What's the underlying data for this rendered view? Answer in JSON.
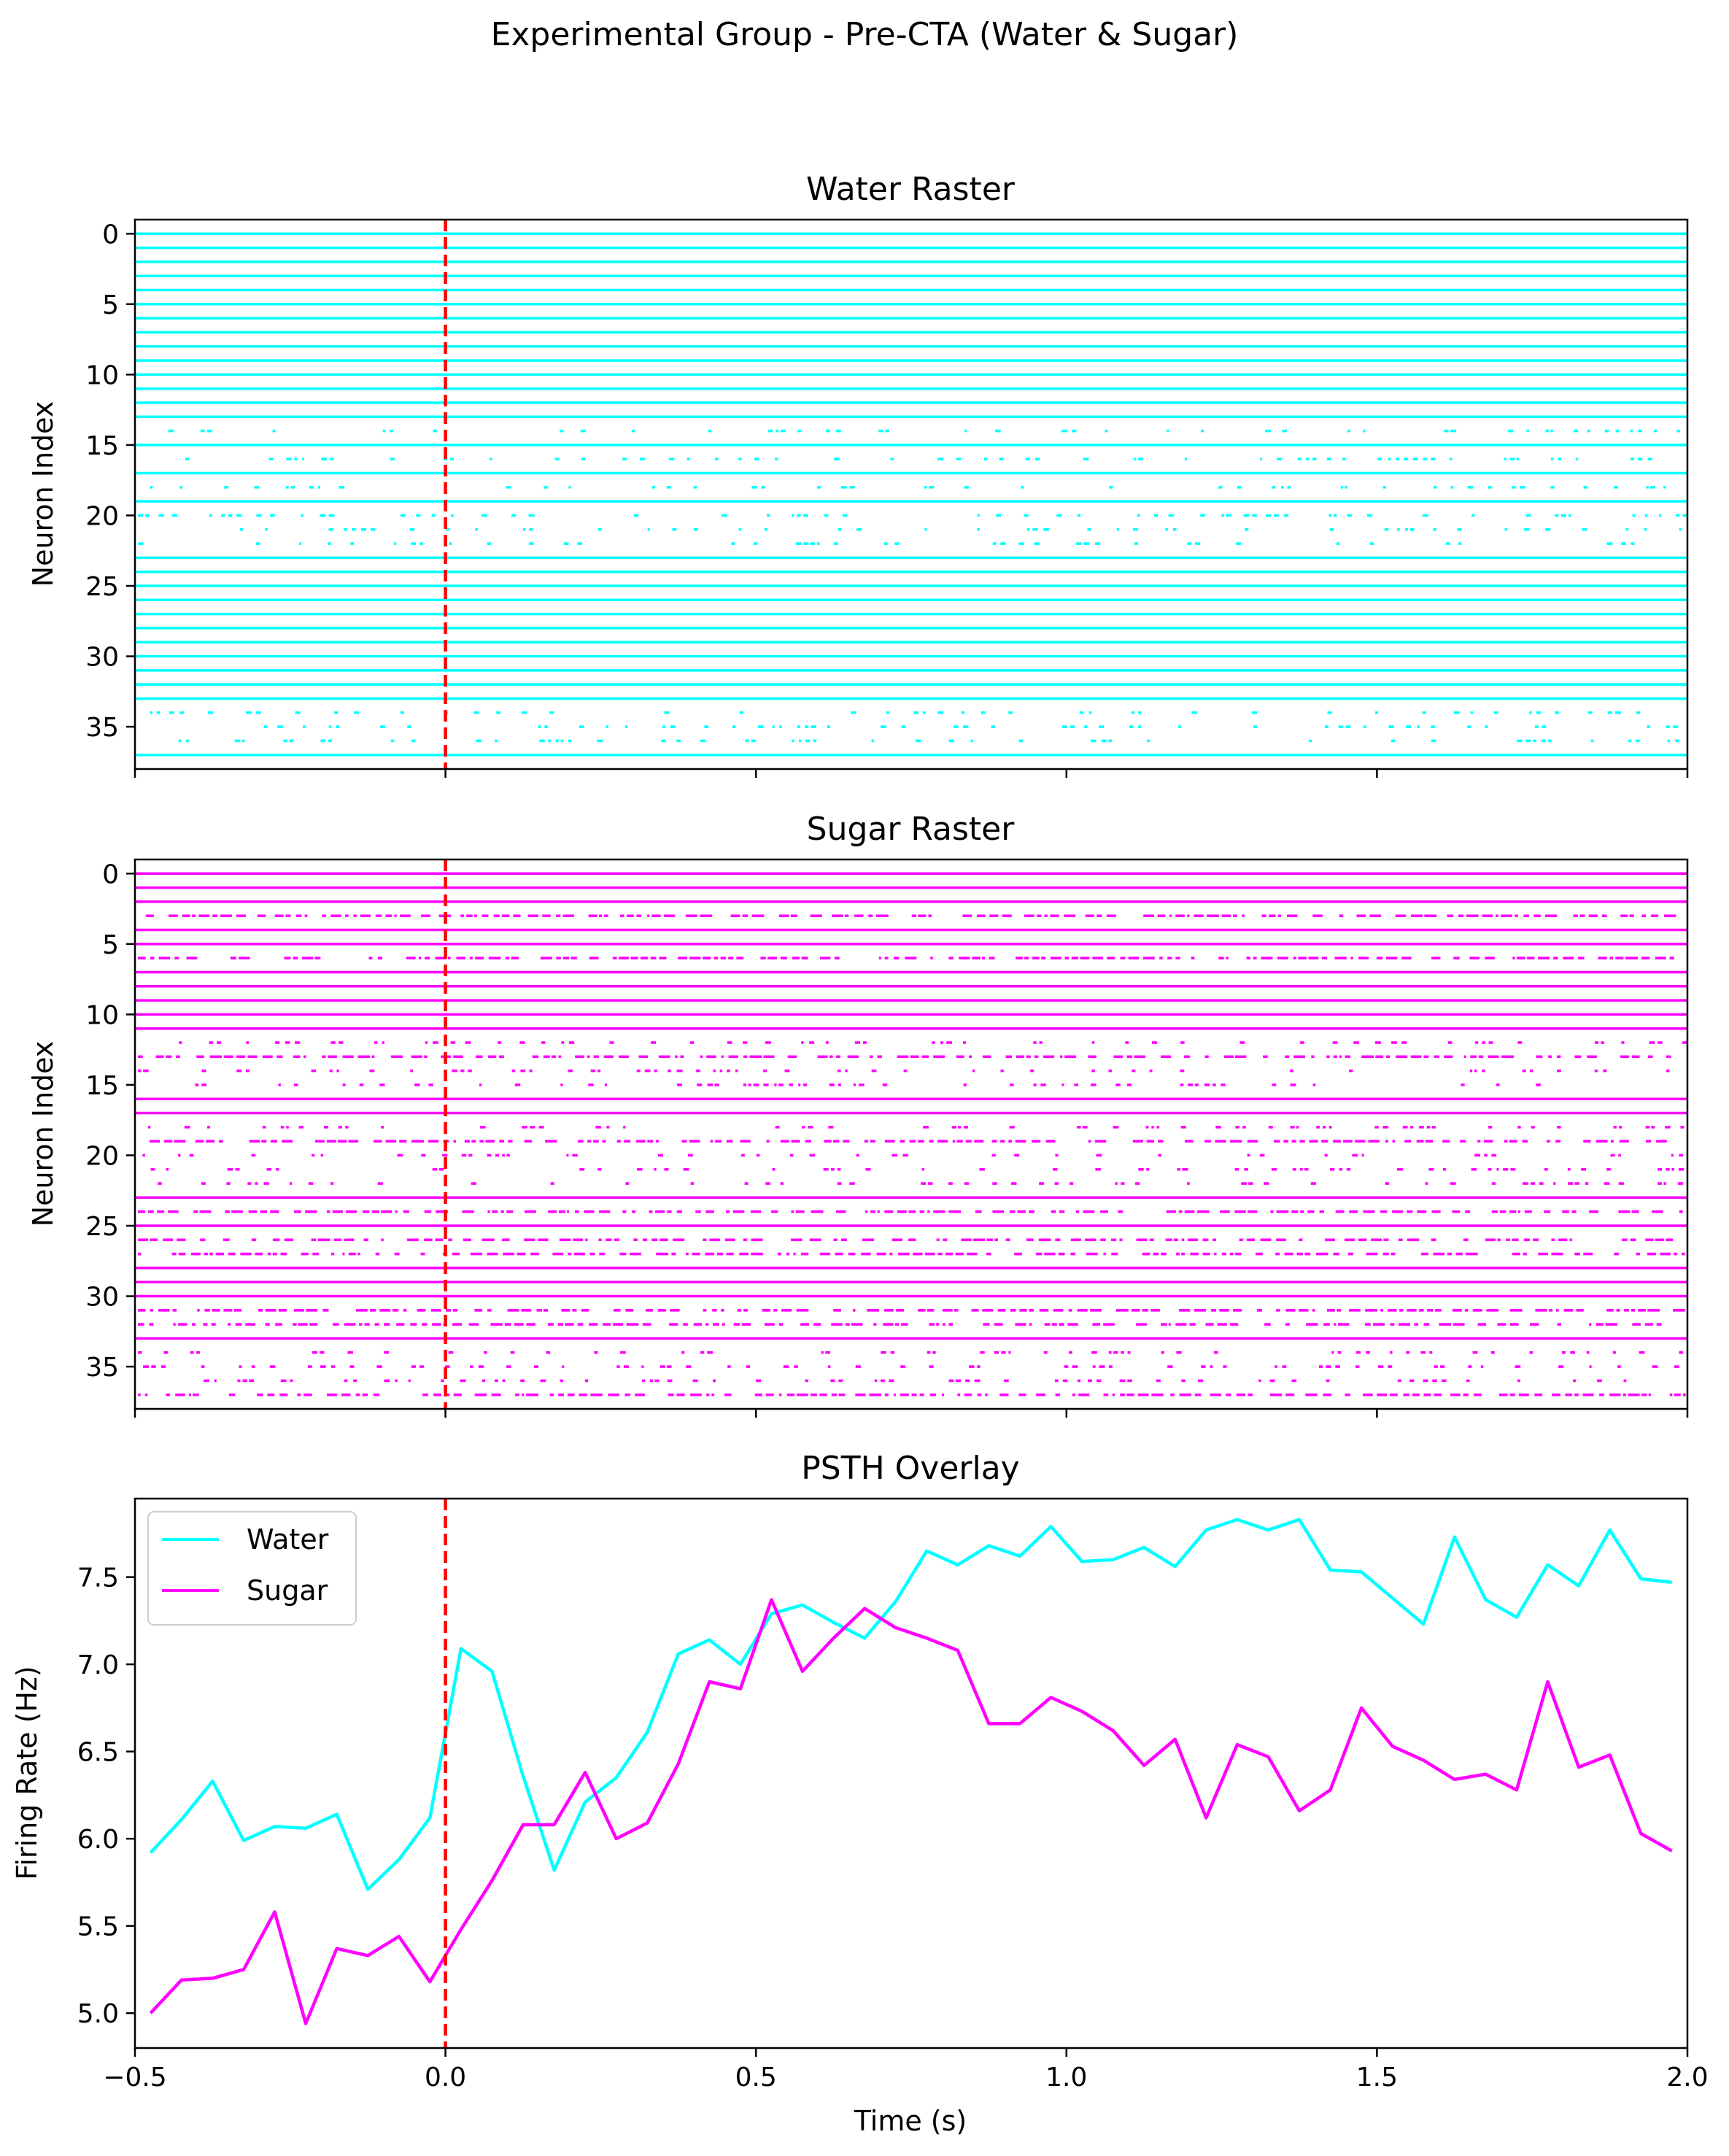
{
  "figure": {
    "suptitle": "Experimental Group - Pre-CTA (Water & Sugar)"
  },
  "colors": {
    "water": "#00ffff",
    "sugar": "#ff00ff",
    "stimulus": "#ff0000",
    "axis": "#000000"
  },
  "chart_data": [
    {
      "type": "scatter",
      "title": "Water Raster",
      "xlabel": "",
      "ylabel": "Neuron Index",
      "xlim": [
        -0.5,
        2.0
      ],
      "ylim": [
        38,
        -1
      ],
      "y_inverted": true,
      "yticks": [
        0,
        5,
        10,
        15,
        20,
        25,
        30,
        35
      ],
      "x_ticklabels_shown": false,
      "stimulus_onset": 0.0,
      "neuron_count": 38,
      "dense_neurons": [
        0,
        1,
        2,
        3,
        4,
        5,
        6,
        7,
        8,
        9,
        10,
        11,
        12,
        13,
        15,
        17,
        19,
        23,
        24,
        25,
        26,
        27,
        28,
        29,
        30,
        31,
        32,
        33,
        37
      ],
      "sparse_neurons": [
        14,
        16,
        18,
        20,
        21,
        22,
        34,
        35,
        36
      ],
      "color": "#00ffff"
    },
    {
      "type": "scatter",
      "title": "Sugar Raster",
      "xlabel": "",
      "ylabel": "Neuron Index",
      "xlim": [
        -0.5,
        2.0
      ],
      "ylim": [
        38,
        -1
      ],
      "y_inverted": true,
      "yticks": [
        0,
        5,
        10,
        15,
        20,
        25,
        30,
        35
      ],
      "x_ticklabels_shown": false,
      "stimulus_onset": 0.0,
      "neuron_count": 38,
      "dense_neurons": [
        0,
        1,
        2,
        4,
        5,
        7,
        8,
        9,
        10,
        11,
        16,
        17,
        23,
        25,
        28,
        29,
        30,
        33
      ],
      "medium_neurons": [
        3,
        6,
        13,
        19,
        24,
        26,
        27,
        31,
        32,
        37
      ],
      "sparse_neurons": [
        12,
        14,
        15,
        18,
        20,
        21,
        22,
        34,
        35,
        36
      ],
      "color": "#ff00ff"
    },
    {
      "type": "line",
      "title": "PSTH Overlay",
      "xlabel": "Time (s)",
      "ylabel": "Firing Rate (Hz)",
      "xlim": [
        -0.5,
        2.0
      ],
      "ylim": [
        4.8,
        7.95
      ],
      "xticks": [
        -0.5,
        0.0,
        0.5,
        1.0,
        1.5,
        2.0
      ],
      "xticklabels": [
        "−0.5",
        "0.0",
        "0.5",
        "1.0",
        "1.5",
        "2.0"
      ],
      "yticks": [
        5.0,
        5.5,
        6.0,
        6.5,
        7.0,
        7.5
      ],
      "yticklabels": [
        "5.0",
        "5.5",
        "6.0",
        "6.5",
        "7.0",
        "7.5"
      ],
      "stimulus_onset": 0.0,
      "legend": {
        "placement": "top-left"
      },
      "x": [
        -0.475,
        -0.425,
        -0.375,
        -0.325,
        -0.275,
        -0.225,
        -0.175,
        -0.125,
        -0.075,
        -0.025,
        0.025,
        0.075,
        0.125,
        0.175,
        0.225,
        0.275,
        0.325,
        0.375,
        0.425,
        0.475,
        0.525,
        0.575,
        0.625,
        0.675,
        0.725,
        0.775,
        0.825,
        0.875,
        0.925,
        0.975,
        1.025,
        1.075,
        1.125,
        1.175,
        1.225,
        1.275,
        1.325,
        1.375,
        1.425,
        1.475,
        1.525,
        1.575,
        1.625,
        1.675,
        1.725,
        1.775,
        1.825,
        1.875,
        1.925,
        1.975
      ],
      "series": [
        {
          "name": "Water",
          "color": "#00ffff",
          "values": [
            5.92,
            6.11,
            6.33,
            5.99,
            6.07,
            6.06,
            6.14,
            5.71,
            5.88,
            6.12,
            7.09,
            6.96,
            6.36,
            5.82,
            6.21,
            6.35,
            6.61,
            7.06,
            7.14,
            7.0,
            7.29,
            7.34,
            7.24,
            7.15,
            7.36,
            7.65,
            7.57,
            7.68,
            7.62,
            7.79,
            7.59,
            7.6,
            7.67,
            7.56,
            7.77,
            7.83,
            7.77,
            7.83,
            7.54,
            7.53,
            7.38,
            7.23,
            7.73,
            7.37,
            7.27,
            7.57,
            7.45,
            7.77,
            7.49,
            7.47
          ]
        },
        {
          "name": "Sugar",
          "color": "#ff00ff",
          "values": [
            5.0,
            5.19,
            5.2,
            5.25,
            5.58,
            4.94,
            5.37,
            5.33,
            5.44,
            5.18,
            5.48,
            5.76,
            6.08,
            6.08,
            6.38,
            6.0,
            6.09,
            6.43,
            6.9,
            6.86,
            7.37,
            6.96,
            7.15,
            7.32,
            7.21,
            7.15,
            7.08,
            6.66,
            6.66,
            6.81,
            6.73,
            6.62,
            6.42,
            6.57,
            6.12,
            6.54,
            6.47,
            6.16,
            6.28,
            6.75,
            6.53,
            6.45,
            6.34,
            6.37,
            6.28,
            6.9,
            6.41,
            6.48,
            6.03,
            5.93
          ]
        }
      ]
    }
  ]
}
